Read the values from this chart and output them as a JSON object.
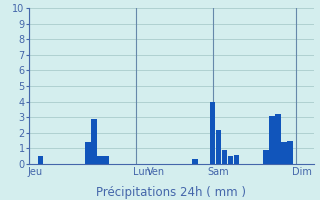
{
  "title": "Précipitations 24h ( mm )",
  "background_color": "#d4eeee",
  "grid_color": "#aacccc",
  "ylim": [
    0,
    10
  ],
  "yticks": [
    0,
    1,
    2,
    3,
    4,
    5,
    6,
    7,
    8,
    9,
    10
  ],
  "xlim": [
    0,
    96
  ],
  "day_labels": [
    {
      "label": "Jeu",
      "x": 2
    },
    {
      "label": "Lun",
      "x": 38
    },
    {
      "label": "Ven",
      "x": 43
    },
    {
      "label": "Sam",
      "x": 64
    },
    {
      "label": "Dim",
      "x": 92
    }
  ],
  "day_lines": [
    0,
    36,
    62,
    90
  ],
  "bars": [
    {
      "x": 4,
      "height": 0.5
    },
    {
      "x": 20,
      "height": 1.4
    },
    {
      "x": 22,
      "height": 2.9
    },
    {
      "x": 24,
      "height": 0.5
    },
    {
      "x": 26,
      "height": 0.5
    },
    {
      "x": 56,
      "height": 0.3
    },
    {
      "x": 62,
      "height": 4.0
    },
    {
      "x": 64,
      "height": 2.2
    },
    {
      "x": 66,
      "height": 0.9
    },
    {
      "x": 68,
      "height": 0.5
    },
    {
      "x": 70,
      "height": 0.6
    },
    {
      "x": 80,
      "height": 0.9
    },
    {
      "x": 82,
      "height": 3.1
    },
    {
      "x": 84,
      "height": 3.2
    },
    {
      "x": 86,
      "height": 1.4
    },
    {
      "x": 88,
      "height": 1.5
    }
  ],
  "bar_width": 1.8,
  "bar_color": "#1155bb",
  "line_color": "#4466aa",
  "tick_fontsize": 7,
  "label_fontsize": 7,
  "title_fontsize": 8.5
}
